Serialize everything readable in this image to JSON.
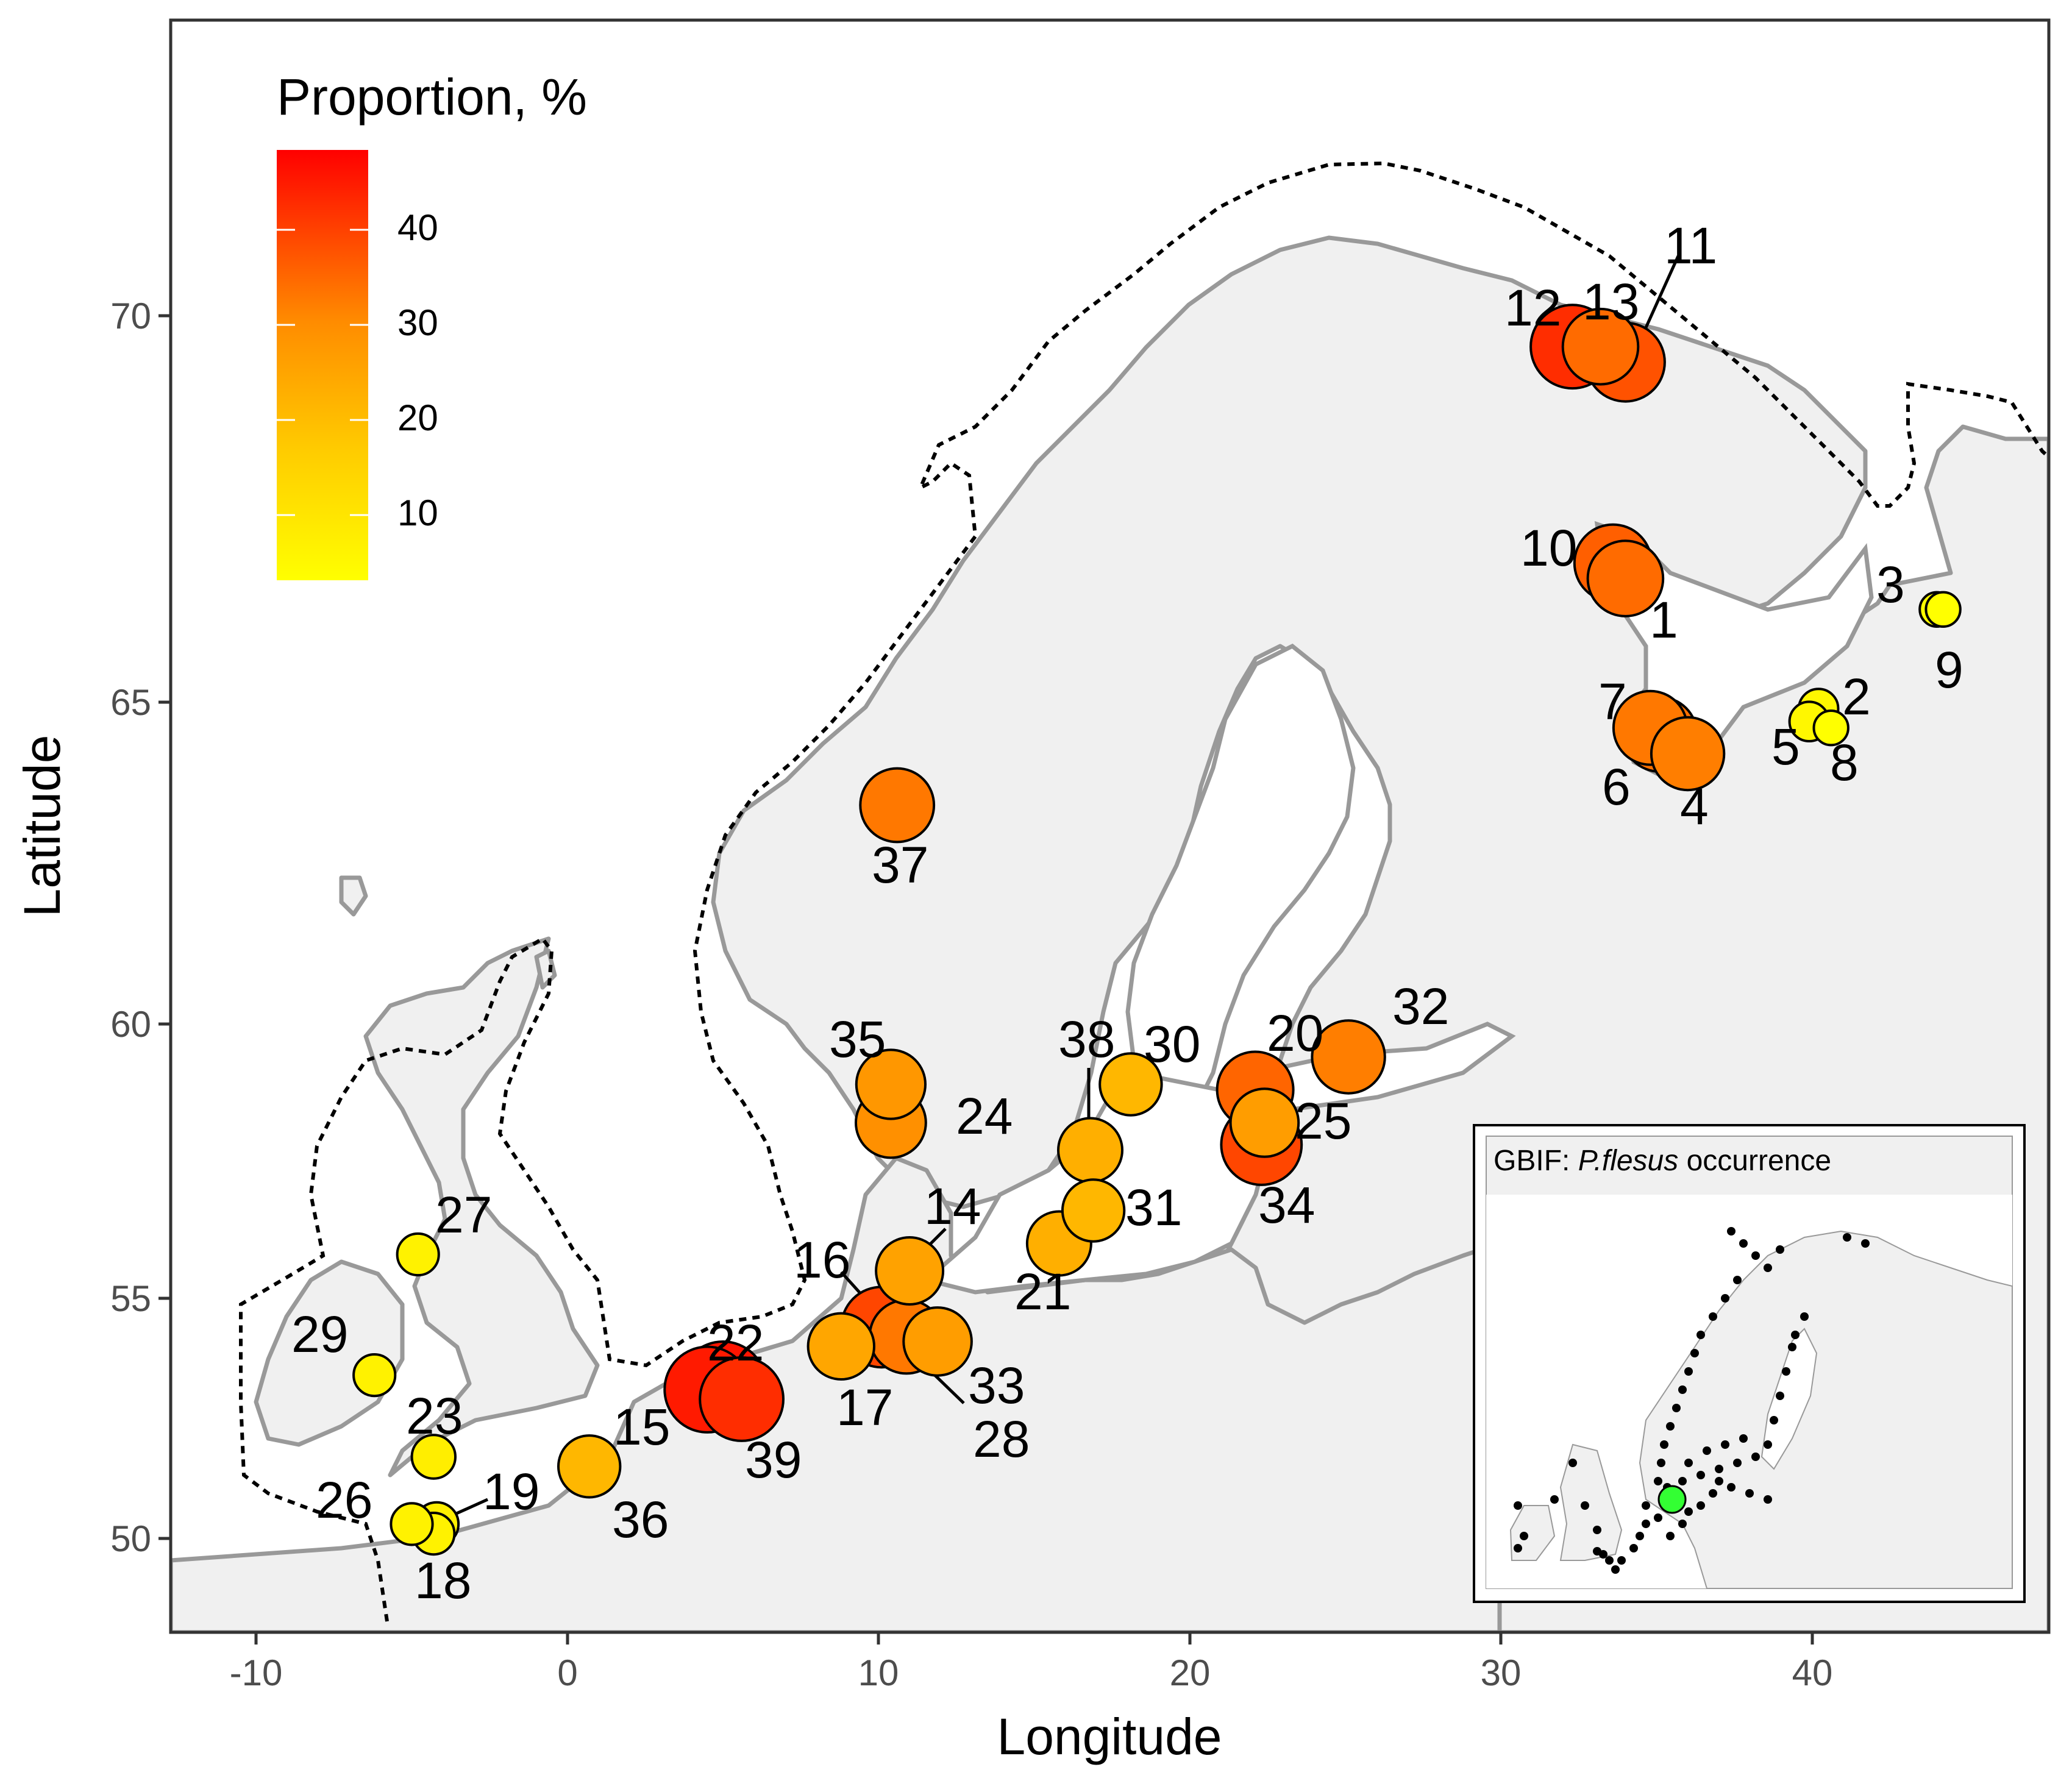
{
  "chart_data": {
    "type": "scatter",
    "title": "",
    "xlabel": "Longitude",
    "ylabel": "Latitude",
    "xlim": [
      -12.8,
      47.9
    ],
    "ylim": [
      48.6,
      73.9
    ],
    "x_ticks": [
      -10,
      0,
      10,
      20,
      30,
      40
    ],
    "y_ticks": [
      50,
      55,
      60,
      65,
      70
    ],
    "x_tick_labels": [
      "-10",
      "0",
      "10",
      "20",
      "30",
      "40"
    ],
    "y_tick_labels": [
      "50",
      "55",
      "60",
      "65",
      "70"
    ],
    "size_variable": "Proportion, %",
    "color_variable": "Proportion, %",
    "legend": {
      "title": "Proportion, %",
      "position": "top-left",
      "range": [
        3,
        48
      ],
      "ticks": [
        10,
        20,
        30,
        40
      ],
      "tick_labels": [
        "10",
        "20",
        "30",
        "40"
      ],
      "colors": [
        "#ffff00",
        "#ff0000"
      ]
    },
    "points": [
      {
        "id": "1",
        "lon": 34.0,
        "lat": 66.6,
        "value": 34
      },
      {
        "id": "2",
        "lon": 40.2,
        "lat": 64.9,
        "value": 5
      },
      {
        "id": "3",
        "lon": 44.0,
        "lat": 66.2,
        "value": 3
      },
      {
        "id": "4",
        "lon": 36.0,
        "lat": 64.2,
        "value": 31
      },
      {
        "id": "5",
        "lon": 39.9,
        "lat": 64.7,
        "value": 5
      },
      {
        "id": "6",
        "lon": 35.1,
        "lat": 64.5,
        "value": 33
      },
      {
        "id": "7",
        "lon": 34.8,
        "lat": 64.6,
        "value": 32
      },
      {
        "id": "8",
        "lon": 40.6,
        "lat": 64.6,
        "value": 3
      },
      {
        "id": "9",
        "lon": 44.2,
        "lat": 66.2,
        "value": 3
      },
      {
        "id": "10",
        "lon": 33.6,
        "lat": 66.8,
        "value": 36
      },
      {
        "id": "11",
        "lon": 34.0,
        "lat": 69.4,
        "value": 38
      },
      {
        "id": "12",
        "lon": 32.3,
        "lat": 69.6,
        "value": 44
      },
      {
        "id": "13",
        "lon": 33.2,
        "lat": 69.6,
        "value": 34
      },
      {
        "id": "14",
        "lon": 11.0,
        "lat": 55.5,
        "value": 25
      },
      {
        "id": "15",
        "lon": 4.5,
        "lat": 53.1,
        "value": 47
      },
      {
        "id": "16",
        "lon": 10.1,
        "lat": 54.4,
        "value": 40
      },
      {
        "id": "17",
        "lon": 8.8,
        "lat": 54.0,
        "value": 24
      },
      {
        "id": "18",
        "lon": -4.3,
        "lat": 50.1,
        "value": 6
      },
      {
        "id": "19",
        "lon": -4.2,
        "lat": 50.3,
        "value": 7
      },
      {
        "id": "20",
        "lon": 22.1,
        "lat": 58.8,
        "value": 35
      },
      {
        "id": "21",
        "lon": 15.8,
        "lat": 56.0,
        "value": 22
      },
      {
        "id": "22",
        "lon": 5.6,
        "lat": 52.9,
        "value": 44
      },
      {
        "id": "23",
        "lon": -4.3,
        "lat": 51.7,
        "value": 7
      },
      {
        "id": "24",
        "lon": 10.4,
        "lat": 58.2,
        "value": 28
      },
      {
        "id": "25",
        "lon": 22.4,
        "lat": 58.2,
        "value": 26
      },
      {
        "id": "26",
        "lon": -5.0,
        "lat": 50.3,
        "value": 6
      },
      {
        "id": "27",
        "lon": -4.8,
        "lat": 55.8,
        "value": 6
      },
      {
        "id": "28",
        "lon": 10.9,
        "lat": 54.2,
        "value": 32
      },
      {
        "id": "29",
        "lon": -6.2,
        "lat": 53.4,
        "value": 6
      },
      {
        "id": "30",
        "lon": 18.1,
        "lat": 58.9,
        "value": 20
      },
      {
        "id": "31",
        "lon": 16.9,
        "lat": 56.6,
        "value": 20
      },
      {
        "id": "32",
        "lon": 25.1,
        "lat": 59.4,
        "value": 31
      },
      {
        "id": "33",
        "lon": 11.9,
        "lat": 54.1,
        "value": 26
      },
      {
        "id": "34",
        "lon": 22.3,
        "lat": 57.8,
        "value": 40
      },
      {
        "id": "35",
        "lon": 10.4,
        "lat": 58.9,
        "value": 27
      },
      {
        "id": "36",
        "lon": 0.7,
        "lat": 51.5,
        "value": 20
      },
      {
        "id": "37",
        "lon": 10.6,
        "lat": 63.4,
        "value": 32
      },
      {
        "id": "38",
        "lon": 16.8,
        "lat": 57.7,
        "value": 22
      },
      {
        "id": "39",
        "lon": 5.0,
        "lat": 53.2,
        "value": 48
      }
    ]
  },
  "inset": {
    "title_prefix": "GBIF: ",
    "title_italic": "P.flesus",
    "title_suffix": " occurrence",
    "point_color": "#000000",
    "highlight_color": "#33ff33"
  },
  "colors": {
    "land": "#f0f0f0",
    "coast": "#999999",
    "sea": "#ffffff",
    "point_outline": "#000000"
  }
}
